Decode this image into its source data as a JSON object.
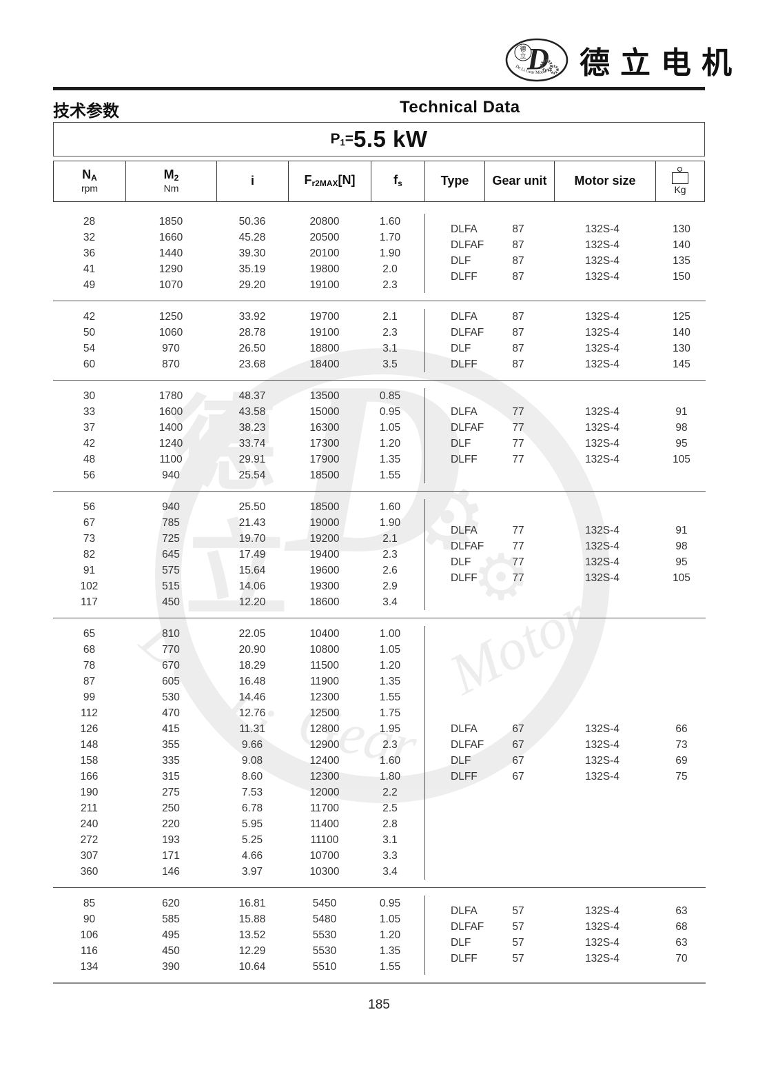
{
  "page": {
    "title_zh": "技术参数",
    "title_en": "Technical Data",
    "power_label": "P",
    "power_sub": "1",
    "power_eq": "=",
    "power_value": "5.5 kW",
    "page_number": "185",
    "ink_color": "#1c1c1c",
    "rule_color": "#8c8c8c"
  },
  "logo": {
    "brand_zh": "德立电机",
    "badge_letter": "D",
    "badge_zh_top": "德",
    "badge_zh_bottom": "立",
    "badge_arc_text": "De Li Gear Motor"
  },
  "watermark": {
    "char_de": "德",
    "char_li": "立",
    "letter_d": "D",
    "gear_glyph": "⚙",
    "words": [
      "De",
      "Li",
      "Gear",
      "Motor"
    ]
  },
  "table": {
    "headers": {
      "na_main": "N",
      "na_sub": "A",
      "na_unit": "rpm",
      "m2_main": "M",
      "m2_sub": "2",
      "m2_unit": "Nm",
      "ratio": "i",
      "fr_main": "F",
      "fr_sub": "r2MAX",
      "fr_bracket": "[N]",
      "fs_main": "f",
      "fs_sub": "s",
      "type": "Type",
      "gear_unit": "Gear unit",
      "motor_size": "Motor size",
      "kg_unit": "Kg"
    },
    "groups": [
      {
        "rows": [
          [
            "28",
            "1850",
            "50.36",
            "20800",
            "1.60"
          ],
          [
            "32",
            "1660",
            "45.28",
            "20500",
            "1.70"
          ],
          [
            "36",
            "1440",
            "39.30",
            "20100",
            "1.90"
          ],
          [
            "41",
            "1290",
            "35.19",
            "19800",
            "2.0"
          ],
          [
            "49",
            "1070",
            "29.20",
            "19100",
            "2.3"
          ]
        ],
        "variants": [
          [
            "DLFA",
            "87",
            "132S-4",
            "130"
          ],
          [
            "DLFAF",
            "87",
            "132S-4",
            "140"
          ],
          [
            "DLF",
            "87",
            "132S-4",
            "135"
          ],
          [
            "DLFF",
            "87",
            "132S-4",
            "150"
          ]
        ]
      },
      {
        "rows": [
          [
            "42",
            "1250",
            "33.92",
            "19700",
            "2.1"
          ],
          [
            "50",
            "1060",
            "28.78",
            "19100",
            "2.3"
          ],
          [
            "54",
            "970",
            "26.50",
            "18800",
            "3.1"
          ],
          [
            "60",
            "870",
            "23.68",
            "18400",
            "3.5"
          ]
        ],
        "variants": [
          [
            "DLFA",
            "87",
            "132S-4",
            "125"
          ],
          [
            "DLFAF",
            "87",
            "132S-4",
            "140"
          ],
          [
            "DLF",
            "87",
            "132S-4",
            "130"
          ],
          [
            "DLFF",
            "87",
            "132S-4",
            "145"
          ]
        ]
      },
      {
        "rows": [
          [
            "30",
            "1780",
            "48.37",
            "13500",
            "0.85"
          ],
          [
            "33",
            "1600",
            "43.58",
            "15000",
            "0.95"
          ],
          [
            "37",
            "1400",
            "38.23",
            "16300",
            "1.05"
          ],
          [
            "42",
            "1240",
            "33.74",
            "17300",
            "1.20"
          ],
          [
            "48",
            "1100",
            "29.91",
            "17900",
            "1.35"
          ],
          [
            "56",
            "940",
            "25.54",
            "18500",
            "1.55"
          ]
        ],
        "variants": [
          [
            "DLFA",
            "77",
            "132S-4",
            "91"
          ],
          [
            "DLFAF",
            "77",
            "132S-4",
            "98"
          ],
          [
            "DLF",
            "77",
            "132S-4",
            "95"
          ],
          [
            "DLFF",
            "77",
            "132S-4",
            "105"
          ]
        ]
      },
      {
        "rows": [
          [
            "56",
            "940",
            "25.50",
            "18500",
            "1.60"
          ],
          [
            "67",
            "785",
            "21.43",
            "19000",
            "1.90"
          ],
          [
            "73",
            "725",
            "19.70",
            "19200",
            "2.1"
          ],
          [
            "82",
            "645",
            "17.49",
            "19400",
            "2.3"
          ],
          [
            "91",
            "575",
            "15.64",
            "19600",
            "2.6"
          ],
          [
            "102",
            "515",
            "14.06",
            "19300",
            "2.9"
          ],
          [
            "117",
            "450",
            "12.20",
            "18600",
            "3.4"
          ]
        ],
        "variants": [
          [
            "DLFA",
            "77",
            "132S-4",
            "91"
          ],
          [
            "DLFAF",
            "77",
            "132S-4",
            "98"
          ],
          [
            "DLF",
            "77",
            "132S-4",
            "95"
          ],
          [
            "DLFF",
            "77",
            "132S-4",
            "105"
          ]
        ]
      },
      {
        "rows": [
          [
            "65",
            "810",
            "22.05",
            "10400",
            "1.00"
          ],
          [
            "68",
            "770",
            "20.90",
            "10800",
            "1.05"
          ],
          [
            "78",
            "670",
            "18.29",
            "11500",
            "1.20"
          ],
          [
            "87",
            "605",
            "16.48",
            "11900",
            "1.35"
          ],
          [
            "99",
            "530",
            "14.46",
            "12300",
            "1.55"
          ],
          [
            "112",
            "470",
            "12.76",
            "12500",
            "1.75"
          ],
          [
            "126",
            "415",
            "11.31",
            "12800",
            "1.95"
          ],
          [
            "148",
            "355",
            "9.66",
            "12900",
            "2.3"
          ],
          [
            "158",
            "335",
            "9.08",
            "12400",
            "1.60"
          ],
          [
            "166",
            "315",
            "8.60",
            "12300",
            "1.80"
          ],
          [
            "190",
            "275",
            "7.53",
            "12000",
            "2.2"
          ],
          [
            "211",
            "250",
            "6.78",
            "11700",
            "2.5"
          ],
          [
            "240",
            "220",
            "5.95",
            "11400",
            "2.8"
          ],
          [
            "272",
            "193",
            "5.25",
            "11100",
            "3.1"
          ],
          [
            "307",
            "171",
            "4.66",
            "10700",
            "3.3"
          ],
          [
            "360",
            "146",
            "3.97",
            "10300",
            "3.4"
          ]
        ],
        "variants": [
          [
            "DLFA",
            "67",
            "132S-4",
            "66"
          ],
          [
            "DLFAF",
            "67",
            "132S-4",
            "73"
          ],
          [
            "DLF",
            "67",
            "132S-4",
            "69"
          ],
          [
            "DLFF",
            "67",
            "132S-4",
            "75"
          ]
        ]
      },
      {
        "rows": [
          [
            "85",
            "620",
            "16.81",
            "5450",
            "0.95"
          ],
          [
            "90",
            "585",
            "15.88",
            "5480",
            "1.05"
          ],
          [
            "106",
            "495",
            "13.52",
            "5530",
            "1.20"
          ],
          [
            "116",
            "450",
            "12.29",
            "5530",
            "1.35"
          ],
          [
            "134",
            "390",
            "10.64",
            "5510",
            "1.55"
          ]
        ],
        "variants": [
          [
            "DLFA",
            "57",
            "132S-4",
            "63"
          ],
          [
            "DLFAF",
            "57",
            "132S-4",
            "68"
          ],
          [
            "DLF",
            "57",
            "132S-4",
            "63"
          ],
          [
            "DLFF",
            "57",
            "132S-4",
            "70"
          ]
        ]
      }
    ]
  }
}
